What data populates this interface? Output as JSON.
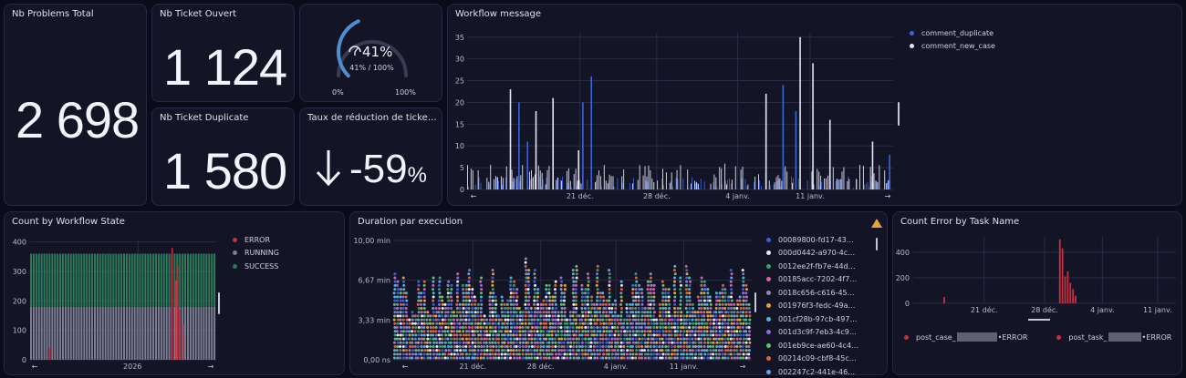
{
  "kpis": {
    "problems_total": {
      "title": "Nb Problems Total",
      "value": "2 698"
    },
    "ticket_ouvert": {
      "title": "Nb Ticket Ouvert",
      "value": "1 124"
    },
    "ticket_duplicate": {
      "title": "Nb Ticket Duplicate",
      "value": "1 580"
    },
    "gauge": {
      "value_label": "41%",
      "sub_label": "41% / 100%",
      "min_label": "0%",
      "max_label": "100%",
      "fraction": 0.41
    },
    "taux": {
      "title": "Taux de réduction de ticke…",
      "value": "-59",
      "unit": "%"
    }
  },
  "workflow_message": {
    "title": "Workflow message",
    "chart_data": {
      "type": "bar",
      "x_tick_labels": [
        "21 déc.",
        "28 déc.",
        "4 janv.",
        "11 janv."
      ],
      "y_ticks": [
        0,
        5,
        10,
        15,
        20,
        25,
        30,
        35
      ],
      "ylim": [
        0,
        36
      ],
      "series": [
        {
          "name": "comment_duplicate",
          "color": "#3d63d8",
          "peaks": [
            {
              "x": 0.12,
              "y": 20
            },
            {
              "x": 0.14,
              "y": 11
            },
            {
              "x": 0.27,
              "y": 20
            },
            {
              "x": 0.29,
              "y": 26
            },
            {
              "x": 0.74,
              "y": 24
            },
            {
              "x": 0.77,
              "y": 18
            },
            {
              "x": 0.99,
              "y": 8
            }
          ]
        },
        {
          "name": "comment_new_case",
          "color": "#e4e6f4",
          "peaks": [
            {
              "x": 0.1,
              "y": 23
            },
            {
              "x": 0.16,
              "y": 18
            },
            {
              "x": 0.2,
              "y": 21
            },
            {
              "x": 0.26,
              "y": 9
            },
            {
              "x": 0.7,
              "y": 22
            },
            {
              "x": 0.78,
              "y": 35
            },
            {
              "x": 0.81,
              "y": 29
            },
            {
              "x": 0.85,
              "y": 16
            },
            {
              "x": 0.95,
              "y": 11
            }
          ]
        }
      ]
    }
  },
  "workflow_state": {
    "title": "Count by Workflow State",
    "chart_data": {
      "type": "bar",
      "x_tick_labels": [
        "2026"
      ],
      "y_ticks": [
        0,
        100,
        200,
        300,
        400
      ],
      "ylim": [
        0,
        405
      ],
      "series": [
        {
          "name": "ERROR",
          "color": "#c6303f"
        },
        {
          "name": "RUNNING",
          "color": "#7c7d92"
        },
        {
          "name": "SUCCESS",
          "color": "#2c7a58"
        }
      ],
      "running_level": 180,
      "success_level": 360
    }
  },
  "duration": {
    "title": "Duration par execution",
    "warning_icon": "warning-icon",
    "chart_data": {
      "type": "scatter",
      "y_tick_labels": [
        "10,00 min",
        "6,67 min",
        "3,33 min",
        "0,00 ns"
      ],
      "x_tick_labels": [
        "21 déc.",
        "28 déc.",
        "4 janv.",
        "11 janv."
      ],
      "ylim_min": [
        0,
        10
      ]
    },
    "legend": [
      {
        "label": "00089800-fd17-43…",
        "color": "#3b62d4"
      },
      {
        "label": "000d0442-a970-4c…",
        "color": "#e9e9f2"
      },
      {
        "label": "0012ee2f-fb7e-44d…",
        "color": "#3c9c68"
      },
      {
        "label": "00185acc-7202-4f7…",
        "color": "#d164a8"
      },
      {
        "label": "0018c656-c616-45…",
        "color": "#8c8fa8"
      },
      {
        "label": "001976f3-fedc-49a…",
        "color": "#e4a23a"
      },
      {
        "label": "001cf28b-97cb-497…",
        "color": "#46b9c8"
      },
      {
        "label": "001d3c9f-7eb3-4c9…",
        "color": "#8c6fd8"
      },
      {
        "label": "001eb9ce-ae60-4c4…",
        "color": "#5fc36a"
      },
      {
        "label": "00214c09-cbf8-45c…",
        "color": "#d9643c"
      },
      {
        "label": "002247c2-441e-46…",
        "color": "#6da4e8"
      }
    ]
  },
  "error_task": {
    "title": "Count Error by Task Name",
    "chart_data": {
      "type": "bar",
      "x_tick_labels": [
        "21 déc.",
        "28 déc.",
        "4 janv.",
        "11 janv."
      ],
      "y_ticks": [
        0,
        200,
        400
      ],
      "ylim": [
        0,
        520
      ]
    },
    "legend": [
      {
        "prefix": "post_case_",
        "suffix": "•ERROR",
        "color": "#c6303f"
      },
      {
        "prefix": "post_task_",
        "suffix": "•ERROR",
        "color": "#c6303f"
      }
    ]
  },
  "colors": {
    "bg": "#0b0b19",
    "panel": "#141427",
    "border": "#262743",
    "gauge": "#4d8fd1",
    "error": "#c6303f"
  }
}
